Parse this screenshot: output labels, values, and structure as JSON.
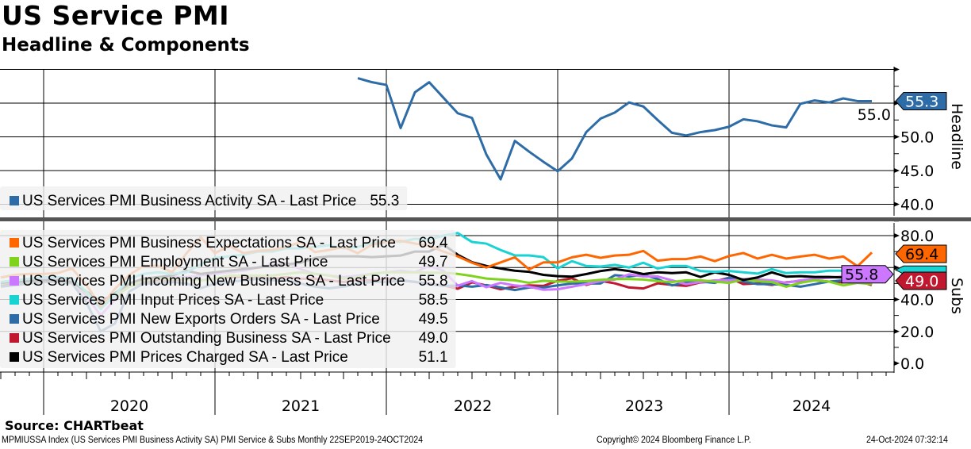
{
  "title": "US Service PMI",
  "subtitle": "Headline & Components",
  "source": "Source: CHARTbeat",
  "footer": {
    "ticker": "MPMIUSSA Index (US Services PMI Business Activity SA) PMI Service & Subs  Monthly 22SEP2019-24OCT2024",
    "copyright": "Copyright© 2024 Bloomberg Finance L.P.",
    "timestamp": "24-Oct-2024 07:32:14"
  },
  "chart_data": [
    {
      "type": "line",
      "panel": "Headline",
      "ylabel": "Headline",
      "ylim": [
        38.5,
        60.8
      ],
      "yticks": [
        "40.0",
        "45.0",
        "50.0",
        "55.0"
      ],
      "ytick_values": [
        40,
        45,
        50,
        55
      ],
      "x_start": "2021-10",
      "x_end": "2024-10",
      "frequency": "monthly",
      "series": [
        {
          "name": "US Services PMI Business Activity SA - Last Price",
          "last": "55.3",
          "color": "#2e6ca8",
          "tag_text_color": "#ffffff",
          "start_index": 25,
          "values": [
            58.7,
            58.1,
            57.7,
            51.3,
            56.6,
            58.1,
            55.8,
            53.5,
            52.8,
            47.4,
            43.7,
            49.4,
            47.8,
            46.3,
            44.9,
            46.8,
            50.7,
            52.7,
            53.6,
            55.1,
            54.5,
            52.5,
            50.6,
            50.2,
            50.7,
            51.0,
            51.5,
            52.6,
            52.3,
            51.7,
            51.4,
            54.9,
            55.4,
            55.1,
            55.7,
            55.3,
            55.3
          ]
        }
      ]
    },
    {
      "type": "line",
      "panel": "Subs",
      "ylabel": "Subs",
      "ylim": [
        -5,
        83
      ],
      "yticks": [
        "0.0",
        "20.0",
        "40.0",
        "80.0"
      ],
      "ytick_values": [
        0,
        20,
        40,
        80
      ],
      "x_start": "2019-09",
      "x_end": "2024-10",
      "frequency": "monthly",
      "series": [
        {
          "name": "US Services PMI Business Expectations SA - Last Price",
          "last": "69.4",
          "color": "#ff6600",
          "tag_text_color": "#000000",
          "start_index": 0,
          "values": [
            53.8,
            55.4,
            56,
            56,
            56.5,
            59.4,
            49,
            35.6,
            46.7,
            55.4,
            61,
            61,
            57,
            68.9,
            79,
            69,
            73.6,
            69,
            70.5,
            71,
            72.9,
            76,
            69.7,
            71,
            72.9,
            69,
            74.4,
            76,
            76.8,
            75,
            73.6,
            70,
            67,
            63,
            60,
            63.2,
            66.4,
            58.9,
            63.2,
            63.2,
            66.4,
            68,
            66.1,
            67.5,
            68,
            70.4,
            64.3,
            65.3,
            65.3,
            66.9,
            64,
            67.2,
            69.1,
            65.6,
            68,
            65.6,
            66.9,
            68,
            65.6,
            66.9,
            60.8,
            69.4
          ]
        },
        {
          "name": "US Services PMI Employment SA - Last Price",
          "last": "49.7",
          "color": "#7fd31d",
          "tag_text_color": "#000000",
          "start_index": 0,
          "values": [
            50,
            51,
            51,
            52,
            52,
            51,
            44,
            37,
            42,
            48,
            52,
            53,
            53,
            53,
            52,
            53,
            55,
            55,
            55,
            55,
            56,
            57,
            56,
            55,
            53,
            54,
            56,
            57,
            57,
            57,
            56.8,
            56.8,
            56,
            54.7,
            53.1,
            52.5,
            52,
            50.4,
            51.7,
            51.2,
            51.2,
            51.5,
            52.3,
            52.8,
            52.8,
            52.5,
            51.5,
            50.9,
            52,
            52,
            51.2,
            50.4,
            52.5,
            51.5,
            50.9,
            48,
            50.4,
            52,
            51.2,
            48.8,
            50.4,
            49.7
          ]
        },
        {
          "name": "US Services PMI Incoming New Business SA - Last Price",
          "last": "55.8",
          "color": "#cc77ff",
          "tag_text_color": "#000000",
          "start_index": 0,
          "values": [
            50,
            51,
            52,
            53,
            53,
            51,
            42,
            30,
            40,
            50,
            53,
            53,
            54,
            54,
            55,
            56,
            57,
            58,
            60,
            62,
            63,
            59,
            56,
            55,
            54,
            55,
            56,
            57,
            58,
            57,
            61,
            58,
            48.6,
            51.5,
            47.7,
            50.4,
            48.8,
            48,
            46.1,
            46.4,
            48,
            49.6,
            51.5,
            52.5,
            55.7,
            54.4,
            54.4,
            52,
            49.6,
            50.9,
            52,
            52,
            52.8,
            52.5,
            52,
            50.4,
            52,
            53.1,
            53.6,
            54.4,
            54.4,
            55.8
          ]
        },
        {
          "name": "US Services PMI Input Prices SA - Last Price",
          "last": "58.5",
          "color": "#19d3d3",
          "tag_text_color": "#000000",
          "start_index": 0,
          "values": [
            51,
            52,
            53,
            54,
            54,
            53,
            45,
            34,
            43,
            53,
            56,
            57,
            56,
            57,
            62,
            66,
            67,
            68,
            70,
            70,
            72,
            72,
            73,
            74,
            72,
            73,
            75,
            77,
            76,
            78,
            77.6,
            80,
            81.6,
            76,
            75,
            71,
            67.6,
            67.6,
            66.5,
            59.4,
            64,
            61,
            60.6,
            61.7,
            60,
            63,
            59.4,
            61,
            61,
            57.8,
            57.3,
            57.8,
            57,
            56.2,
            59,
            56.5,
            57,
            57,
            58,
            58,
            59,
            58.5
          ]
        },
        {
          "name": "US Services PMI New Exports Orders SA - Last Price",
          "last": "49.5",
          "color": "#2e6ca8",
          "tag_text_color": "#ffffff",
          "start_index": 0,
          "values": [
            48,
            49,
            50,
            51,
            51,
            50,
            38,
            20,
            25,
            45,
            50,
            50,
            51,
            50,
            47,
            50,
            51,
            52,
            53,
            52,
            52,
            50,
            48,
            47,
            48,
            50,
            51,
            51,
            52,
            51,
            49.6,
            48.5,
            48.8,
            48,
            49,
            47.5,
            45.9,
            47.5,
            47.5,
            48.8,
            50,
            50,
            50,
            55.2,
            54.4,
            55.5,
            52.8,
            48.8,
            50.7,
            51.2,
            50.4,
            53.6,
            51.2,
            49.6,
            49.6,
            49.1,
            48,
            49.6,
            51.2,
            52,
            52.8,
            49.5
          ]
        },
        {
          "name": "US Services PMI Outstanding Business SA - Last Price",
          "last": "49.0",
          "color": "#c0182f",
          "tag_text_color": "#ffffff",
          "start_index": 0,
          "values": [
            49,
            50,
            51,
            51,
            52,
            50,
            44,
            37,
            42,
            48,
            51,
            52,
            52,
            53,
            52,
            53,
            54,
            54,
            54,
            53,
            54,
            53,
            53,
            52,
            51,
            52,
            52,
            53,
            52,
            51,
            50,
            48.8,
            46.7,
            50.7,
            48.8,
            46.4,
            48,
            48.8,
            48.5,
            51.7,
            53.3,
            49.1,
            51.7,
            50.1,
            47.5,
            46.9,
            50.1,
            49.1,
            48.5,
            50.7,
            51.2,
            53.6,
            49.6,
            50.1,
            49.1,
            50.7,
            51.7,
            52,
            51.2,
            50.7,
            51.7,
            49.0
          ]
        },
        {
          "name": "US Services PMI Prices Charged SA - Last Price",
          "last": "51.1",
          "color": "#000000",
          "tag_text_color": "#ffffff",
          "start_index": 0,
          "values": [
            50.5,
            51,
            51.5,
            52,
            52,
            51,
            45,
            38.5,
            44,
            50,
            53,
            54,
            55,
            58,
            56,
            57,
            58,
            59,
            60,
            61,
            62,
            63,
            66,
            67,
            67,
            67,
            66.5,
            67,
            67.5,
            70,
            70,
            74.4,
            68,
            63.3,
            61,
            59.4,
            58,
            57.3,
            55.4,
            54.6,
            54.3,
            55.9,
            57.8,
            59,
            57.8,
            55.9,
            57,
            56.5,
            57,
            54.1,
            57,
            55.4,
            52.2,
            53.8,
            57,
            54.3,
            54.6,
            54.1,
            54.1,
            53.8,
            55.4,
            51.1
          ]
        }
      ],
      "visible_tags": [
        "69.4",
        "55.8",
        "49.0"
      ]
    }
  ],
  "x_axis": {
    "year_labels": [
      "2020",
      "2021",
      "2022",
      "2023",
      "2024"
    ]
  },
  "colors": {
    "grid": "#000000",
    "separator": "#555555",
    "legend_bg": "#f0f0f0"
  }
}
